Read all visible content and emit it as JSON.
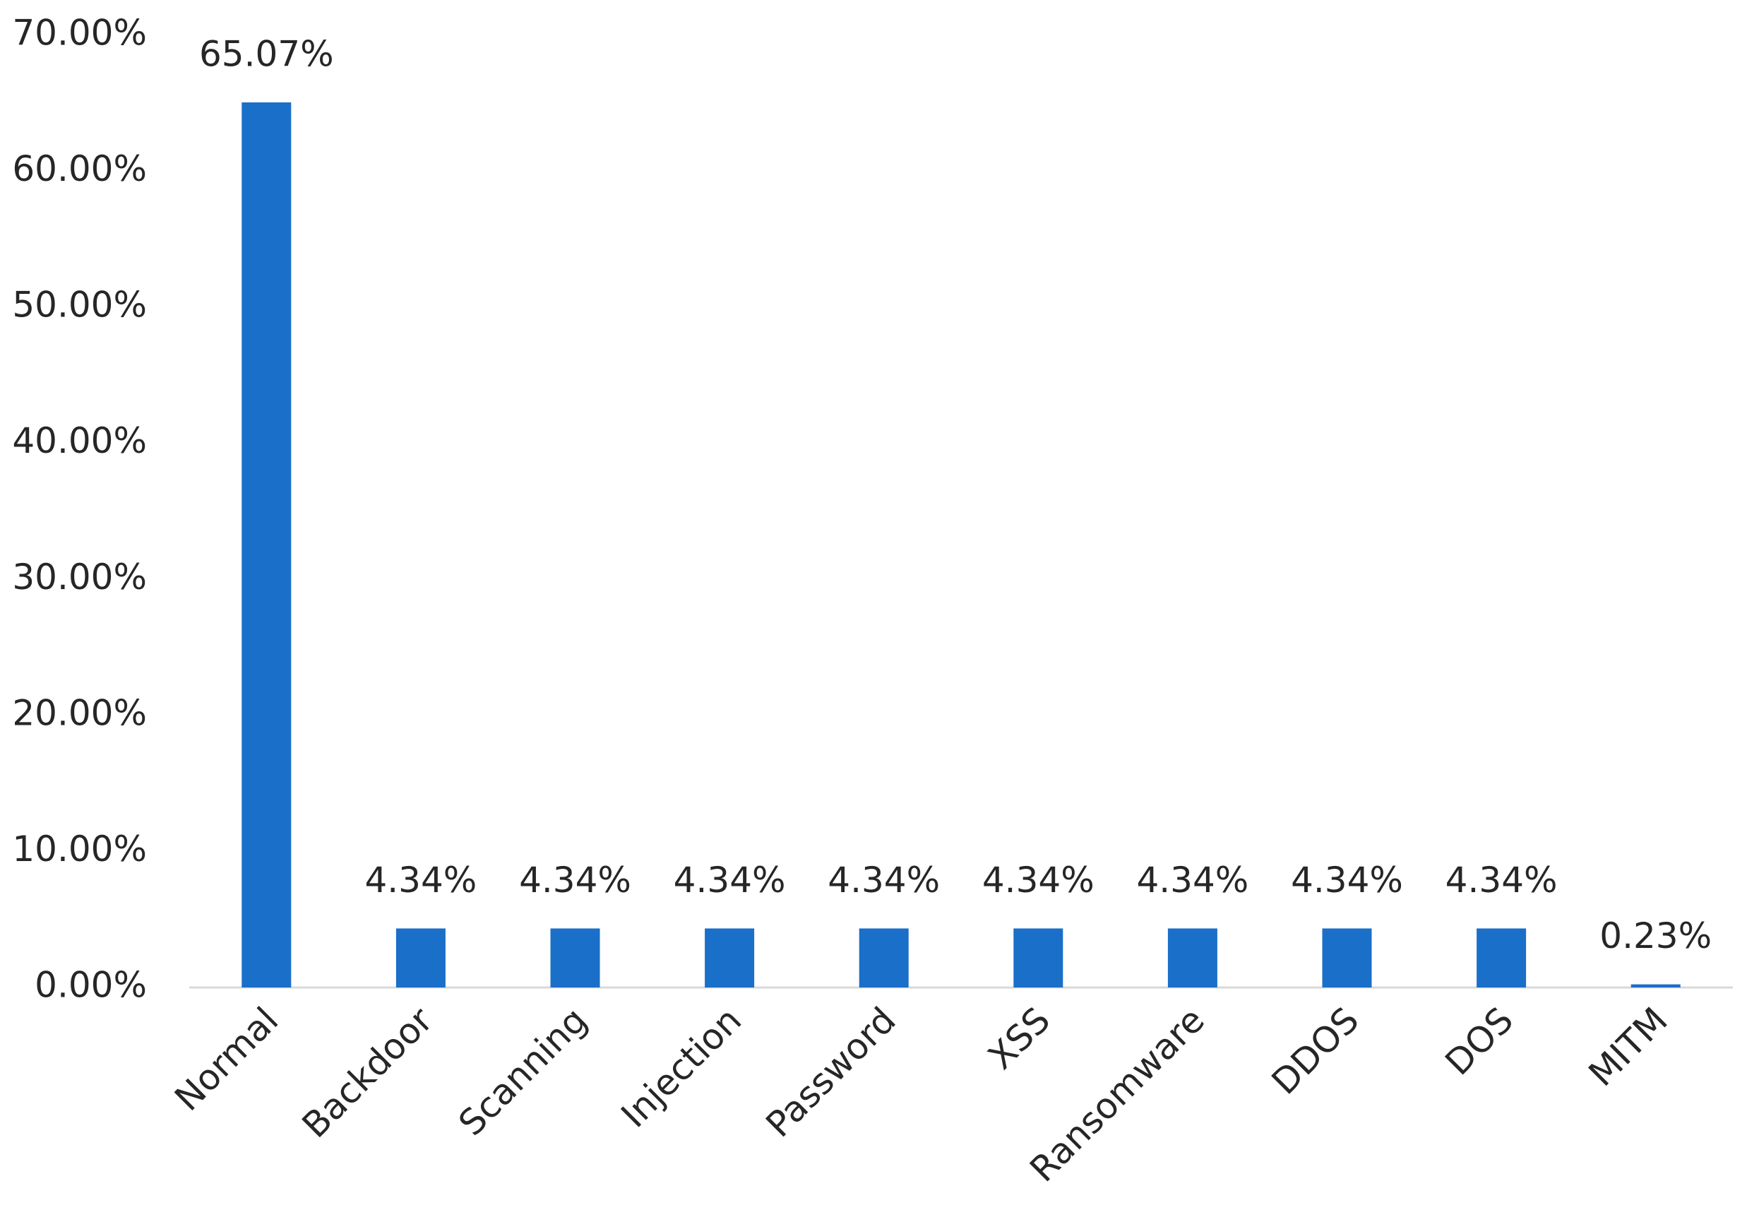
{
  "chart_data": {
    "type": "bar",
    "categories": [
      "Normal",
      "Backdoor",
      "Scanning",
      "Injection",
      "Password",
      "XSS",
      "Ransomware",
      "DDOS",
      "DOS",
      "MITM"
    ],
    "values": [
      65.07,
      4.34,
      4.34,
      4.34,
      4.34,
      4.34,
      4.34,
      4.34,
      4.34,
      0.23
    ],
    "value_labels": [
      "65.07%",
      "4.34%",
      "4.34%",
      "4.34%",
      "4.34%",
      "4.34%",
      "4.34%",
      "4.34%",
      "4.34%",
      "0.23%"
    ],
    "color": "#1a6fc9",
    "ylim": [
      0,
      70
    ],
    "yticks": [
      {
        "value": 0,
        "label": "0.00%"
      },
      {
        "value": 10,
        "label": "10.00%"
      },
      {
        "value": 20,
        "label": "20.00%"
      },
      {
        "value": 30,
        "label": "30.00%"
      },
      {
        "value": 40,
        "label": "40.00%"
      },
      {
        "value": 50,
        "label": "50.00%"
      },
      {
        "value": 60,
        "label": "60.00%"
      },
      {
        "value": 70,
        "label": "70.00%"
      }
    ],
    "grid": false
  }
}
